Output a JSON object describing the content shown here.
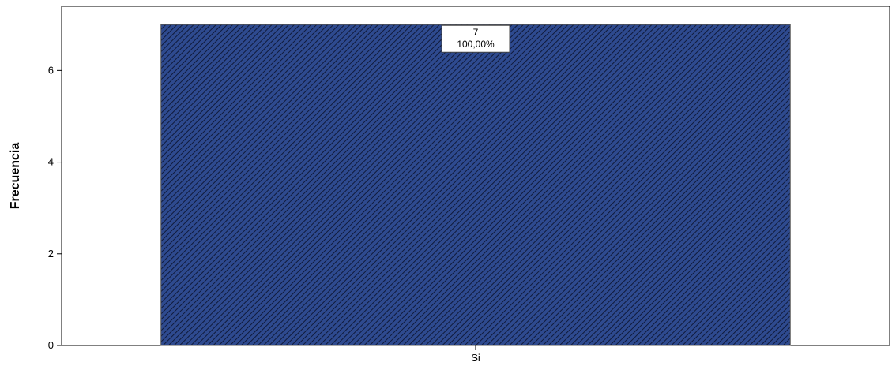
{
  "chart_data": {
    "type": "bar",
    "categories": [
      "Si"
    ],
    "values": [
      7
    ],
    "data_labels": [
      {
        "count": "7",
        "percent": "100,00%"
      }
    ],
    "title": "",
    "xlabel": "",
    "ylabel": "Frecuencia",
    "ylim": [
      0,
      7.4
    ],
    "yticks": [
      0,
      2,
      4,
      6
    ],
    "grid": false,
    "bar_fill": "#2e4a8f",
    "hatch_color": "#101a3a"
  }
}
